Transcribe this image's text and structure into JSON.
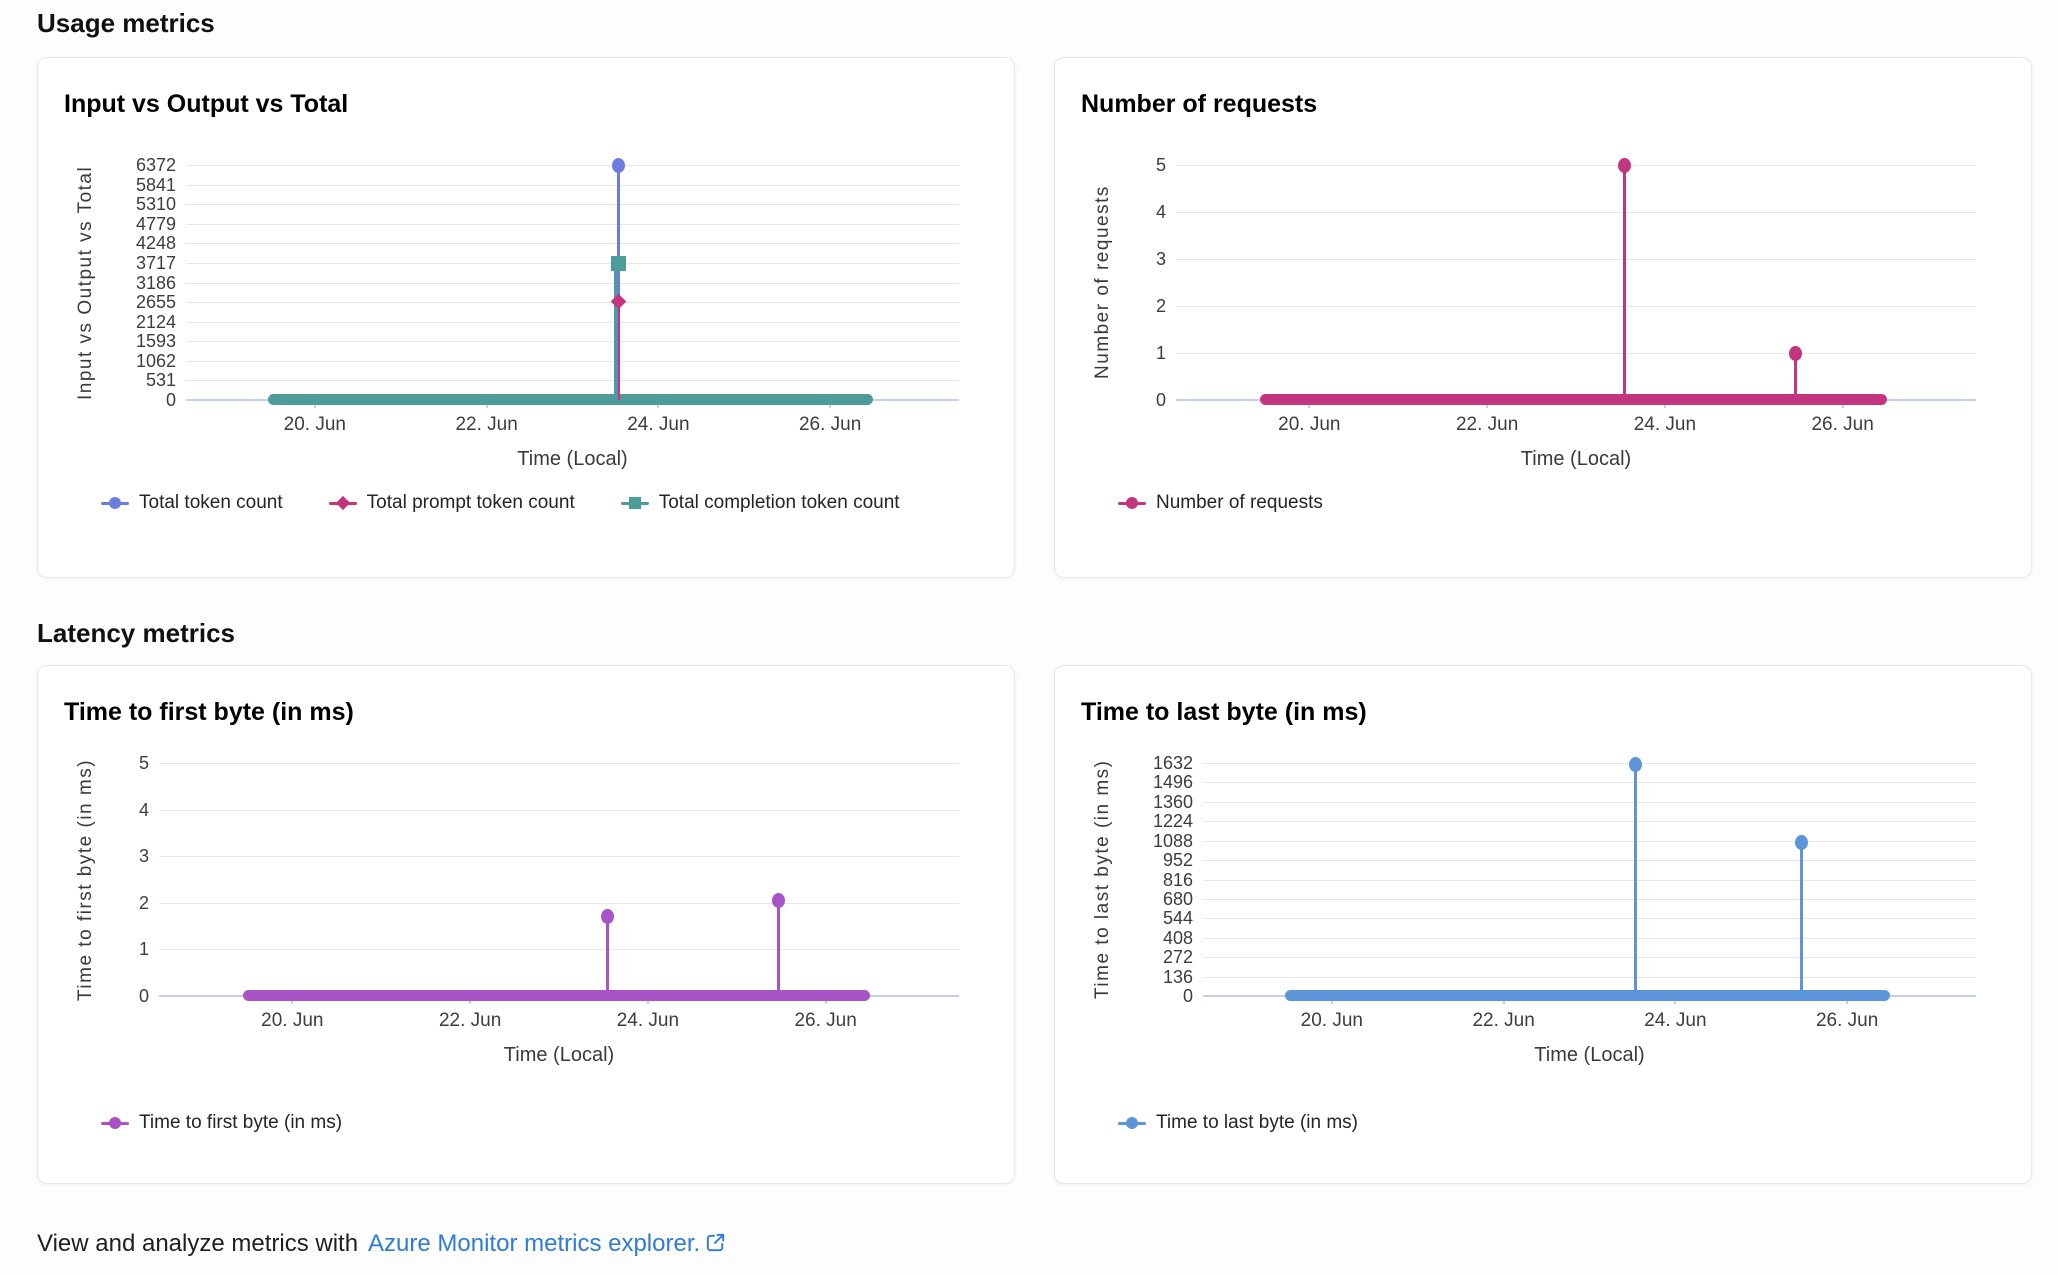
{
  "page": {
    "sections": {
      "usage": "Usage metrics",
      "latency": "Latency metrics"
    },
    "footer": {
      "text": "View and analyze metrics with",
      "link_label": "Azure Monitor metrics explorer."
    }
  },
  "palette": {
    "blue_violet": "#6B7CDF",
    "magenta": "#C3357F",
    "teal": "#4E9C99",
    "purple": "#A854C7",
    "steel_blue": "#5C95D9",
    "gridline": "#e7e7e7",
    "axis_line": "#c6cfe8",
    "link_blue": "#2E7CD6"
  },
  "chart_data": [
    {
      "type": "line",
      "title": "Input vs Output vs Total",
      "ylabel": "Input vs Output vs Total",
      "xlabel": "Time (Local)",
      "x_tick_labels": [
        "20. Jun",
        "22. Jun",
        "24. Jun",
        "26. Jun"
      ],
      "x_tick_days": [
        20,
        22,
        24,
        26
      ],
      "x_domain_days": [
        18.5,
        27.5
      ],
      "y_ticks": [
        6372,
        5841,
        5310,
        4779,
        4248,
        3717,
        3186,
        2655,
        2124,
        1593,
        1062,
        531,
        0
      ],
      "ylim": [
        0,
        6372
      ],
      "grid": true,
      "legend_position": "bottom",
      "baseline": {
        "value": 0,
        "span_days": [
          19.45,
          26.5
        ],
        "color": "#4E9C99"
      },
      "series": [
        {
          "name": "Total token count",
          "color": "#6B7CDF",
          "marker": "circle",
          "line_offset": 0,
          "line_width": 3,
          "points": [
            {
              "day": 23.54,
              "value": 6372
            }
          ]
        },
        {
          "name": "Total prompt token count",
          "color": "#C3357F",
          "marker": "diamond",
          "line_offset": 0,
          "line_width": 2,
          "points": [
            {
              "day": 23.54,
              "value": 2672
            }
          ]
        },
        {
          "name": "Total completion token count",
          "color": "#4E9C99",
          "marker": "square",
          "line_offset": -3,
          "line_width": 3,
          "points": [
            {
              "day": 23.54,
              "value": 3700
            }
          ]
        }
      ],
      "wide_labels": true
    },
    {
      "type": "line",
      "title": "Number of requests",
      "ylabel": "Number of requests",
      "xlabel": "Time (Local)",
      "x_tick_labels": [
        "20. Jun",
        "22. Jun",
        "24. Jun",
        "26. Jun"
      ],
      "x_tick_days": [
        20,
        22,
        24,
        26
      ],
      "x_domain_days": [
        18.5,
        27.5
      ],
      "y_ticks": [
        5,
        4,
        3,
        2,
        1,
        0
      ],
      "ylim": [
        0,
        5
      ],
      "grid": true,
      "legend_position": "bottom",
      "baseline": {
        "value": 0,
        "span_days": [
          19.45,
          26.5
        ],
        "color": "#C3357F"
      },
      "series": [
        {
          "name": "Number of requests",
          "color": "#C3357F",
          "marker": "circle",
          "line_offset": 0,
          "line_width": 3,
          "points": [
            {
              "day": 23.54,
              "value": 5
            },
            {
              "day": 25.47,
              "value": 1
            }
          ]
        }
      ],
      "wide_labels": false
    },
    {
      "type": "line",
      "title": "Time to first byte (in ms)",
      "ylabel": "Time to first byte (in ms)",
      "xlabel": "Time (Local)",
      "x_tick_labels": [
        "20. Jun",
        "22. Jun",
        "24. Jun",
        "26. Jun"
      ],
      "x_tick_days": [
        20,
        22,
        24,
        26
      ],
      "x_domain_days": [
        18.5,
        27.5
      ],
      "y_ticks": [
        5,
        4,
        3,
        2,
        1,
        0
      ],
      "ylim": [
        0,
        5
      ],
      "grid": true,
      "legend_position": "bottom",
      "baseline": {
        "value": 0,
        "span_days": [
          19.45,
          26.5
        ],
        "color": "#A854C7"
      },
      "series": [
        {
          "name": "Time to first byte (in ms)",
          "color": "#A854C7",
          "marker": "circle",
          "line_offset": 0,
          "line_width": 3,
          "points": [
            {
              "day": 23.54,
              "value": 1.7
            },
            {
              "day": 25.47,
              "value": 2.05
            }
          ]
        }
      ],
      "wide_labels": false
    },
    {
      "type": "line",
      "title": "Time to last byte (in ms)",
      "ylabel": "Time to last byte (in ms)",
      "xlabel": "Time (Local)",
      "x_tick_labels": [
        "20. Jun",
        "22. Jun",
        "24. Jun",
        "26. Jun"
      ],
      "x_tick_days": [
        20,
        22,
        24,
        26
      ],
      "x_domain_days": [
        18.5,
        27.5
      ],
      "y_ticks": [
        1632,
        1496,
        1360,
        1224,
        1088,
        952,
        816,
        680,
        544,
        408,
        272,
        136,
        0
      ],
      "ylim": [
        0,
        1632
      ],
      "grid": true,
      "legend_position": "bottom",
      "baseline": {
        "value": 0,
        "span_days": [
          19.45,
          26.5
        ],
        "color": "#5C95D9"
      },
      "series": [
        {
          "name": "Time to last byte (in ms)",
          "color": "#5C95D9",
          "marker": "circle",
          "line_offset": 0,
          "line_width": 3,
          "points": [
            {
              "day": 23.54,
              "value": 1620
            },
            {
              "day": 25.47,
              "value": 1072
            }
          ]
        }
      ],
      "wide_labels": true
    }
  ]
}
